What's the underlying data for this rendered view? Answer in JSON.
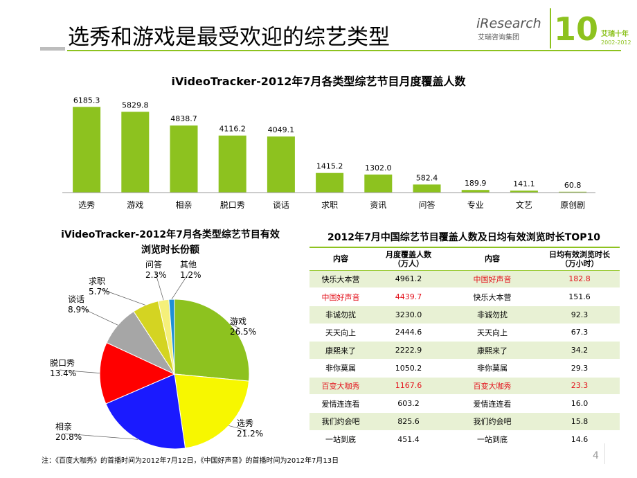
{
  "slide": {
    "title": "选秀和游戏是最受欢迎的综艺类型",
    "note": "注：《百度大咖秀》的首播时间为2012年7月12日，《中国好声音》的首播时间为2012年7月13日",
    "page_number": "4"
  },
  "logo": {
    "brand": "iResearch",
    "brand_cn": "艾瑞咨询集团",
    "anniversary": "10",
    "anniversary_cn": "艾瑞十年",
    "years": "2002-2012"
  },
  "colors": {
    "accent": "#8dc21f",
    "highlight": "#e3101a"
  },
  "chart_data": [
    {
      "type": "bar",
      "title": "iVideoTracker-2012年7月各类型综艺节目月度覆盖人数",
      "categories": [
        "选秀",
        "游戏",
        "相亲",
        "脱口秀",
        "谈话",
        "求职",
        "资讯",
        "问答",
        "专业",
        "文艺",
        "原创剧"
      ],
      "values": [
        6185.3,
        5829.8,
        4838.7,
        4116.2,
        4049.1,
        1415.2,
        1302.0,
        582.4,
        189.9,
        141.1,
        60.8
      ],
      "value_labels": [
        "6185.3",
        "5829.8",
        "4838.7",
        "4116.2",
        "4049.1",
        "1415.2",
        "1302.0",
        "582.4",
        "189.9",
        "141.1",
        "60.8"
      ],
      "color": "#8dc21f",
      "ylim": [
        0,
        6500
      ]
    },
    {
      "type": "pie",
      "title": "iVideoTracker-2012年7月各类型综艺节目有效",
      "title_line2": "浏览时长份额",
      "slices": [
        {
          "label": "游戏",
          "value": 26.5,
          "pct": "26.5%",
          "color": "#8dc21f"
        },
        {
          "label": "选秀",
          "value": 21.2,
          "pct": "21.2%",
          "color": "#f7f700"
        },
        {
          "label": "相亲",
          "value": 20.8,
          "pct": "20.8%",
          "color": "#1a1aff"
        },
        {
          "label": "脱口秀",
          "value": 13.4,
          "pct": "13.4%",
          "color": "#ff0000"
        },
        {
          "label": "谈话",
          "value": 8.9,
          "pct": "8.9%",
          "color": "#a6a6a6"
        },
        {
          "label": "求职",
          "value": 5.7,
          "pct": "5.7%",
          "color": "#d4d422"
        },
        {
          "label": "问答",
          "value": 2.3,
          "pct": "2.3%",
          "color": "#f5f07a"
        },
        {
          "label": "其他",
          "value": 1.2,
          "pct": "1.2%",
          "color": "#1e90d6"
        }
      ]
    },
    {
      "type": "table",
      "title": "2012年7月中国综艺节目覆盖人数及日均有效浏览时长TOP10",
      "headers": [
        "内容",
        "月度覆盖人数\n（万人）",
        "内容",
        "日均有效浏览时长\n（万小时）"
      ],
      "rows": [
        {
          "name1": "快乐大本营",
          "v1": "4961.2",
          "name2": "中国好声音",
          "v2": "182.8",
          "red1": false,
          "red2": true
        },
        {
          "name1": "中国好声音",
          "v1": "4439.7",
          "name2": "快乐大本营",
          "v2": "151.6",
          "red1": true,
          "red2": false
        },
        {
          "name1": "非诚勿扰",
          "v1": "3230.0",
          "name2": "非诚勿扰",
          "v2": "92.3",
          "red1": false,
          "red2": false
        },
        {
          "name1": "天天向上",
          "v1": "2444.6",
          "name2": "天天向上",
          "v2": "67.3",
          "red1": false,
          "red2": false
        },
        {
          "name1": "康熙来了",
          "v1": "2222.9",
          "name2": "康熙来了",
          "v2": "34.2",
          "red1": false,
          "red2": false
        },
        {
          "name1": "非你莫属",
          "v1": "1050.2",
          "name2": "非你莫属",
          "v2": "29.3",
          "red1": false,
          "red2": false
        },
        {
          "name1": "百变大咖秀",
          "v1": "1167.6",
          "name2": "百变大咖秀",
          "v2": "23.3",
          "red1": true,
          "red2": true
        },
        {
          "name1": "爱情连连看",
          "v1": "603.2",
          "name2": "爱情连连看",
          "v2": "16.0",
          "red1": false,
          "red2": false
        },
        {
          "name1": "我们约会吧",
          "v1": "825.6",
          "name2": "我们约会吧",
          "v2": "15.8",
          "red1": false,
          "red2": false
        },
        {
          "name1": "一站到底",
          "v1": "451.4",
          "name2": "一站到底",
          "v2": "14.6",
          "red1": false,
          "red2": false
        }
      ]
    }
  ]
}
